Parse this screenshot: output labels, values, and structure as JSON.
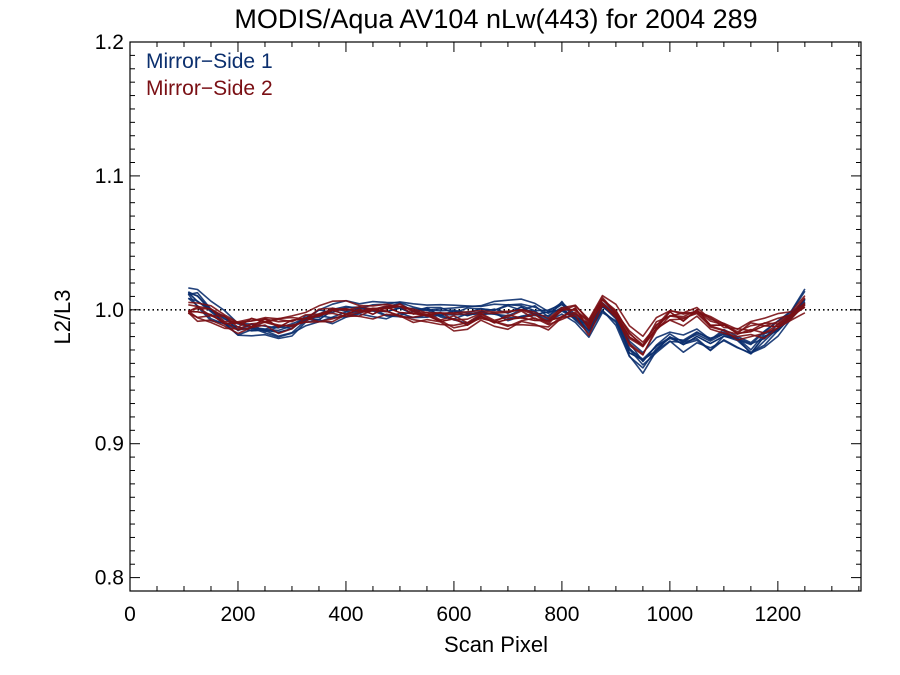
{
  "chart_data": {
    "type": "line",
    "title": "MODIS/Aqua AV104 nLw(443) for 2004 289",
    "xlabel": "Scan Pixel",
    "ylabel": "L2/L3",
    "xlim": [
      0,
      1354
    ],
    "ylim": [
      0.79,
      1.2
    ],
    "xticks": [
      "0",
      "200",
      "400",
      "600",
      "800",
      "1000",
      "1200"
    ],
    "xtick_values": [
      0,
      200,
      400,
      600,
      800,
      1000,
      1200
    ],
    "yticks": [
      "0.8",
      "0.9",
      "1.0",
      "1.1",
      "1.2"
    ],
    "ytick_values": [
      0.8,
      0.9,
      1.0,
      1.1,
      1.2
    ],
    "reference_line": 1.0,
    "legend_position": "top-left",
    "grid": false,
    "series": [
      {
        "name": "Mirror−Side 1",
        "color": "#0b2f6e",
        "x": [
          108,
          125,
          150,
          175,
          200,
          225,
          250,
          275,
          300,
          325,
          350,
          375,
          400,
          425,
          450,
          475,
          500,
          525,
          550,
          575,
          600,
          625,
          650,
          675,
          700,
          725,
          750,
          775,
          800,
          825,
          850,
          875,
          900,
          925,
          950,
          975,
          1000,
          1025,
          1050,
          1075,
          1100,
          1125,
          1150,
          1175,
          1200,
          1225,
          1250
        ],
        "values": [
          1.012,
          1.008,
          0.998,
          0.992,
          0.985,
          0.986,
          0.984,
          0.983,
          0.987,
          0.992,
          0.995,
          0.997,
          0.999,
          0.998,
          1.0,
          0.999,
          1.0,
          0.999,
          0.999,
          0.998,
          0.997,
          0.997,
          0.998,
          1.0,
          0.999,
          1.0,
          0.999,
          0.996,
          1.002,
          0.993,
          0.985,
          1.003,
          0.993,
          0.97,
          0.96,
          0.972,
          0.978,
          0.975,
          0.98,
          0.974,
          0.982,
          0.976,
          0.97,
          0.978,
          0.986,
          0.994,
          1.008
        ]
      },
      {
        "name": "Mirror−Side 2",
        "color": "#7a0f14",
        "x": [
          108,
          125,
          150,
          175,
          200,
          225,
          250,
          275,
          300,
          325,
          350,
          375,
          400,
          425,
          450,
          475,
          500,
          525,
          550,
          575,
          600,
          625,
          650,
          675,
          700,
          725,
          750,
          775,
          800,
          825,
          850,
          875,
          900,
          925,
          950,
          975,
          1000,
          1025,
          1050,
          1075,
          1100,
          1125,
          1150,
          1175,
          1200,
          1225,
          1250
        ],
        "values": [
          1.0,
          0.998,
          0.996,
          0.991,
          0.988,
          0.99,
          0.991,
          0.989,
          0.991,
          0.994,
          0.996,
          0.998,
          0.999,
          0.998,
          0.999,
          1.0,
          0.999,
          0.997,
          0.995,
          0.993,
          0.991,
          0.991,
          0.993,
          0.992,
          0.992,
          0.994,
          0.993,
          0.99,
          0.997,
          0.999,
          0.988,
          1.006,
          0.998,
          0.98,
          0.972,
          0.988,
          0.996,
          0.994,
          0.998,
          0.99,
          0.988,
          0.982,
          0.985,
          0.986,
          0.99,
          0.993,
          1.004
        ]
      }
    ]
  }
}
